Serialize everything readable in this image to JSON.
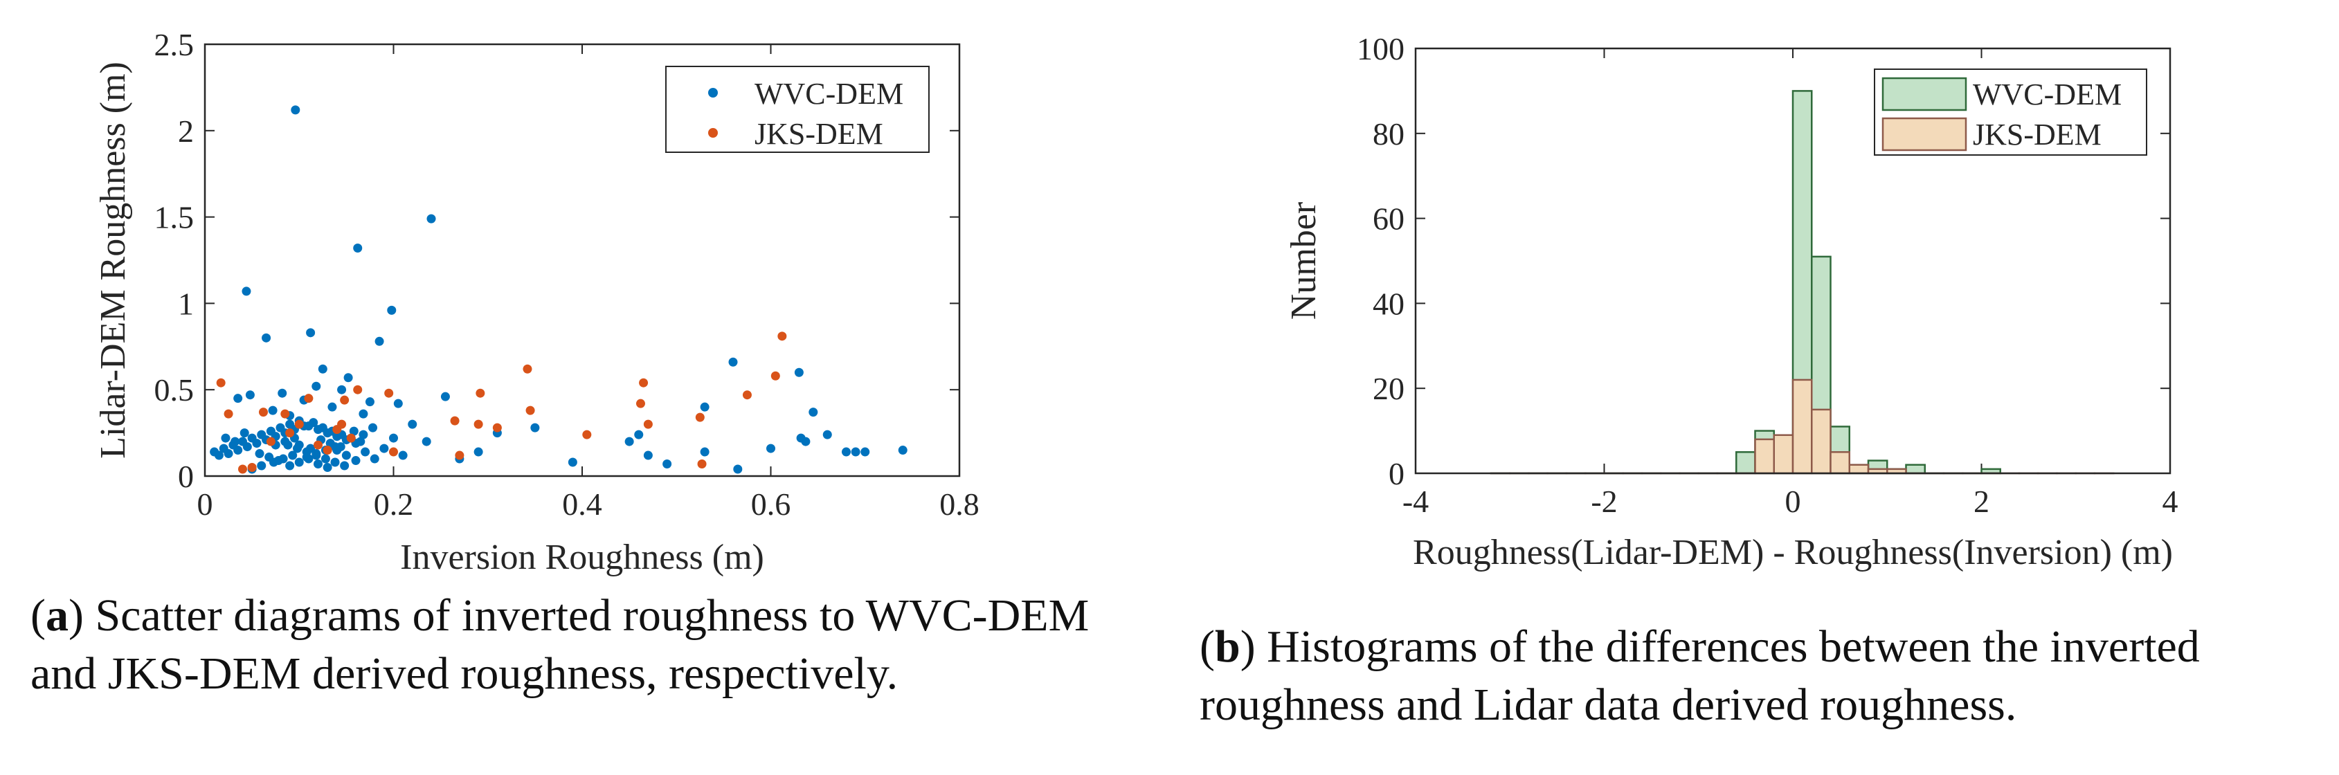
{
  "colors": {
    "wvc": "#0072BD",
    "jks": "#D95319",
    "hist_wvc_fill": "#C3E2C8",
    "hist_wvc_edge": "#2F6A3A",
    "hist_jks_fill": "#F3DABA",
    "hist_jks_edge": "#8E5A4A"
  },
  "chart_data": [
    {
      "type": "scatter",
      "title": "",
      "xlabel": "Inversion Roughness (m)",
      "ylabel": "Lidar-DEM Roughness (m)",
      "xlim": [
        0,
        0.8
      ],
      "ylim": [
        0,
        2.5
      ],
      "xticks": [
        0,
        0.2,
        0.4,
        0.6,
        0.8
      ],
      "xtick_labels": [
        "0",
        "0.2",
        "0.4",
        "0.6",
        "0.8"
      ],
      "yticks": [
        0,
        0.5,
        1,
        1.5,
        2,
        2.5
      ],
      "ytick_labels": [
        "0",
        "0.5",
        "1",
        "1.5",
        "2",
        "2.5"
      ],
      "legend": "top-right",
      "series": [
        {
          "name": "WVC-DEM",
          "color": "#0072BD",
          "x": [
            0.096,
            0.24,
            0.162,
            0.044,
            0.198,
            0.112,
            0.065,
            0.125,
            0.185,
            0.56,
            0.63,
            0.152,
            0.048,
            0.118,
            0.145,
            0.082,
            0.255,
            0.645,
            0.53,
            0.035,
            0.105,
            0.175,
            0.205,
            0.072,
            0.135,
            0.168,
            0.09,
            0.01,
            0.02,
            0.03,
            0.04,
            0.05,
            0.06,
            0.07,
            0.08,
            0.09,
            0.1,
            0.11,
            0.12,
            0.13,
            0.14,
            0.15,
            0.16,
            0.015,
            0.025,
            0.035,
            0.045,
            0.055,
            0.065,
            0.075,
            0.085,
            0.095,
            0.105,
            0.115,
            0.125,
            0.135,
            0.145,
            0.155,
            0.165,
            0.088,
            0.098,
            0.108,
            0.118,
            0.128,
            0.138,
            0.148,
            0.078,
            0.068,
            0.058,
            0.12,
            0.13,
            0.1,
            0.11,
            0.14,
            0.09,
            0.15,
            0.16,
            0.17,
            0.18,
            0.19,
            0.2,
            0.21,
            0.22,
            0.235,
            0.27,
            0.29,
            0.31,
            0.35,
            0.39,
            0.45,
            0.47,
            0.49,
            0.53,
            0.565,
            0.6,
            0.632,
            0.637,
            0.66,
            0.68,
            0.69,
            0.7,
            0.74,
            0.46,
            0.05,
            0.06,
            0.1,
            0.112,
            0.123,
            0.133,
            0.144,
            0.095,
            0.085,
            0.075,
            0.042,
            0.032,
            0.022,
            0.108,
            0.118,
            0.128,
            0.138,
            0.093,
            0.083,
            0.073,
            0.158,
            0.168,
            0.178
          ],
          "y": [
            2.12,
            1.49,
            1.32,
            1.07,
            0.96,
            0.83,
            0.8,
            0.62,
            0.78,
            0.66,
            0.6,
            0.57,
            0.47,
            0.52,
            0.5,
            0.48,
            0.46,
            0.37,
            0.4,
            0.45,
            0.44,
            0.43,
            0.42,
            0.38,
            0.4,
            0.36,
            0.35,
            0.14,
            0.16,
            0.18,
            0.2,
            0.22,
            0.24,
            0.26,
            0.28,
            0.3,
            0.32,
            0.29,
            0.27,
            0.25,
            0.23,
            0.21,
            0.19,
            0.12,
            0.13,
            0.15,
            0.17,
            0.19,
            0.21,
            0.23,
            0.25,
            0.27,
            0.29,
            0.31,
            0.28,
            0.26,
            0.24,
            0.22,
            0.2,
            0.18,
            0.16,
            0.14,
            0.12,
            0.1,
            0.08,
            0.06,
            0.09,
            0.11,
            0.13,
            0.07,
            0.05,
            0.08,
            0.1,
            0.15,
            0.06,
            0.12,
            0.09,
            0.14,
            0.1,
            0.16,
            0.22,
            0.12,
            0.3,
            0.2,
            0.1,
            0.14,
            0.25,
            0.28,
            0.08,
            0.2,
            0.12,
            0.07,
            0.14,
            0.04,
            0.16,
            0.22,
            0.2,
            0.24,
            0.14,
            0.14,
            0.14,
            0.15,
            0.24,
            0.04,
            0.06,
            0.18,
            0.16,
            0.21,
            0.19,
            0.17,
            0.22,
            0.2,
            0.18,
            0.25,
            0.2,
            0.22,
            0.11,
            0.13,
            0.15,
            0.17,
            0.12,
            0.1,
            0.08,
            0.26,
            0.24,
            0.28
          ]
        },
        {
          "name": "JKS-DEM",
          "color": "#D95319",
          "x": [
            0.612,
            0.342,
            0.465,
            0.605,
            0.017,
            0.162,
            0.195,
            0.292,
            0.462,
            0.575,
            0.345,
            0.11,
            0.148,
            0.062,
            0.085,
            0.265,
            0.29,
            0.31,
            0.405,
            0.47,
            0.525,
            0.527,
            0.14,
            0.1,
            0.2,
            0.27,
            0.04,
            0.05,
            0.025,
            0.155,
            0.12,
            0.09,
            0.13,
            0.07,
            0.145
          ],
          "y": [
            0.81,
            0.62,
            0.54,
            0.58,
            0.54,
            0.5,
            0.48,
            0.48,
            0.42,
            0.47,
            0.38,
            0.45,
            0.44,
            0.37,
            0.36,
            0.32,
            0.3,
            0.28,
            0.24,
            0.3,
            0.34,
            0.07,
            0.27,
            0.3,
            0.14,
            0.12,
            0.04,
            0.05,
            0.36,
            0.22,
            0.18,
            0.25,
            0.15,
            0.2,
            0.3
          ]
        }
      ]
    },
    {
      "type": "histogram",
      "title": "",
      "xlabel": "Roughness(Lidar-DEM) - Roughness(Inversion) (m)",
      "ylabel": "Number",
      "xlim": [
        -4,
        4
      ],
      "ylim": [
        0,
        100
      ],
      "xticks": [
        -4,
        -2,
        0,
        2,
        4
      ],
      "xtick_labels": [
        "-4",
        "-2",
        "0",
        "2",
        "4"
      ],
      "yticks": [
        0,
        20,
        40,
        60,
        80,
        100
      ],
      "ytick_labels": [
        "0",
        "20",
        "40",
        "60",
        "80",
        "100"
      ],
      "legend": "top-right",
      "bin_width": 0.2,
      "series": [
        {
          "name": "WVC-DEM",
          "bins": [
            {
              "x0": -3.2,
              "count": 0
            },
            {
              "x0": -3.0,
              "count": 0
            },
            {
              "x0": -2.8,
              "count": 0
            },
            {
              "x0": -2.6,
              "count": 0
            },
            {
              "x0": -2.4,
              "count": 0
            },
            {
              "x0": -2.2,
              "count": 0
            },
            {
              "x0": -2.0,
              "count": 0
            },
            {
              "x0": -1.8,
              "count": 0
            },
            {
              "x0": -1.6,
              "count": 0
            },
            {
              "x0": -1.4,
              "count": 0
            },
            {
              "x0": -1.2,
              "count": 0
            },
            {
              "x0": -1.0,
              "count": 0
            },
            {
              "x0": -0.8,
              "count": 0
            },
            {
              "x0": -0.6,
              "count": 5
            },
            {
              "x0": -0.4,
              "count": 10
            },
            {
              "x0": -0.2,
              "count": 8
            },
            {
              "x0": 0.0,
              "count": 90
            },
            {
              "x0": 0.2,
              "count": 51
            },
            {
              "x0": 0.4,
              "count": 11
            },
            {
              "x0": 0.6,
              "count": 2
            },
            {
              "x0": 0.8,
              "count": 3
            },
            {
              "x0": 1.0,
              "count": 1
            },
            {
              "x0": 1.2,
              "count": 2
            },
            {
              "x0": 1.4,
              "count": 0
            },
            {
              "x0": 1.6,
              "count": 0
            },
            {
              "x0": 1.8,
              "count": 0
            },
            {
              "x0": 2.0,
              "count": 1
            }
          ]
        },
        {
          "name": "JKS-DEM",
          "bins": [
            {
              "x0": -3.2,
              "count": 0
            },
            {
              "x0": -3.0,
              "count": 0
            },
            {
              "x0": -2.8,
              "count": 0
            },
            {
              "x0": -2.6,
              "count": 0
            },
            {
              "x0": -2.4,
              "count": 0
            },
            {
              "x0": -2.2,
              "count": 0
            },
            {
              "x0": -2.0,
              "count": 0
            },
            {
              "x0": -1.8,
              "count": 0
            },
            {
              "x0": -1.6,
              "count": 0
            },
            {
              "x0": -1.4,
              "count": 0
            },
            {
              "x0": -1.2,
              "count": 0
            },
            {
              "x0": -1.0,
              "count": 0
            },
            {
              "x0": -0.8,
              "count": 0
            },
            {
              "x0": -0.6,
              "count": 0
            },
            {
              "x0": -0.4,
              "count": 8
            },
            {
              "x0": -0.2,
              "count": 9
            },
            {
              "x0": 0.0,
              "count": 22
            },
            {
              "x0": 0.2,
              "count": 15
            },
            {
              "x0": 0.4,
              "count": 5
            },
            {
              "x0": 0.6,
              "count": 2
            },
            {
              "x0": 0.8,
              "count": 1
            },
            {
              "x0": 1.0,
              "count": 1
            },
            {
              "x0": 1.2,
              "count": 0
            },
            {
              "x0": 1.4,
              "count": 0
            },
            {
              "x0": 1.6,
              "count": 0
            },
            {
              "x0": 1.8,
              "count": 0
            },
            {
              "x0": 2.0,
              "count": 0
            },
            {
              "x0": 2.2,
              "count": 0
            },
            {
              "x0": 2.4,
              "count": 0
            },
            {
              "x0": 2.6,
              "count": 0
            },
            {
              "x0": 2.8,
              "count": 0
            },
            {
              "x0": 3.0,
              "count": 0
            },
            {
              "x0": 3.2,
              "count": 0
            }
          ]
        }
      ]
    }
  ],
  "captions": {
    "a_label": "a",
    "a_text": ") Scatter diagrams of inverted roughness to WVC-DEM and JKS-DEM derived roughness, respectively.",
    "b_label": "b",
    "b_text": ") Histograms of the differences between the inverted roughness and Lidar data derived roughness."
  }
}
